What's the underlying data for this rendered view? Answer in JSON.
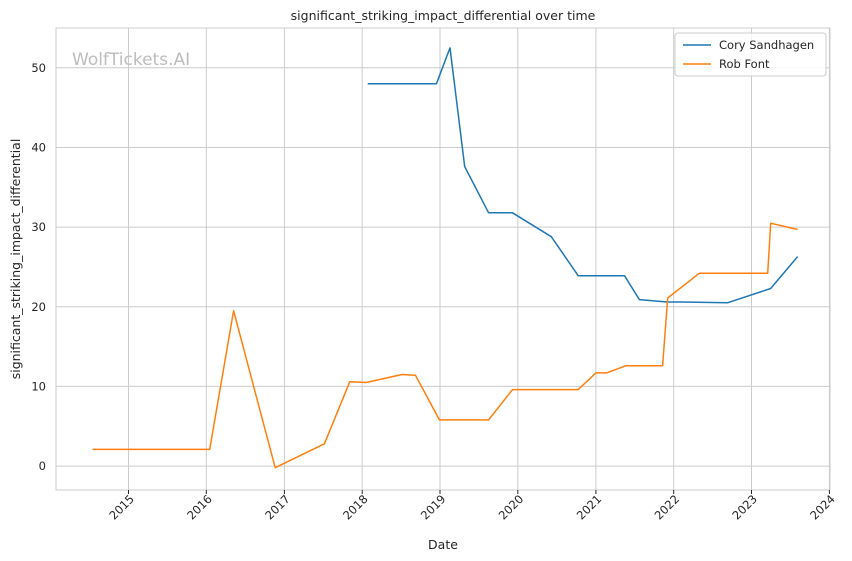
{
  "chart_data": {
    "type": "line",
    "title": "significant_striking_impact_differential over time",
    "xlabel": "Date",
    "ylabel": "significant_striking_impact_differential",
    "watermark": "WolfTickets.AI",
    "xlim": [
      "2014-01-26",
      "2024-01-04"
    ],
    "ylim": [
      -3,
      55
    ],
    "x_ticks": [
      "2015",
      "2016",
      "2017",
      "2018",
      "2019",
      "2020",
      "2021",
      "2022",
      "2023",
      "2024"
    ],
    "y_ticks": [
      0,
      10,
      20,
      30,
      40,
      50
    ],
    "grid": true,
    "legend_position": "top-right",
    "series": [
      {
        "name": "Cory Sandhagen",
        "color": "#1f77b4",
        "points": [
          {
            "x": "2018-01-27",
            "y": 48.0
          },
          {
            "x": "2018-12-15",
            "y": 48.0
          },
          {
            "x": "2019-02-17",
            "y": 52.5
          },
          {
            "x": "2019-04-27",
            "y": 37.6
          },
          {
            "x": "2019-08-17",
            "y": 31.8
          },
          {
            "x": "2019-12-07",
            "y": 31.8
          },
          {
            "x": "2020-06-06",
            "y": 28.8
          },
          {
            "x": "2020-10-10",
            "y": 23.9
          },
          {
            "x": "2021-02-06",
            "y": 23.9
          },
          {
            "x": "2021-05-15",
            "y": 23.9
          },
          {
            "x": "2021-07-24",
            "y": 20.9
          },
          {
            "x": "2021-12-01",
            "y": 20.6
          },
          {
            "x": "2022-02-08",
            "y": 20.6
          },
          {
            "x": "2022-09-10",
            "y": 20.5
          },
          {
            "x": "2023-04-01",
            "y": 22.3
          },
          {
            "x": "2023-08-05",
            "y": 26.3
          }
        ]
      },
      {
        "name": "Rob Font",
        "color": "#ff7f0e",
        "points": [
          {
            "x": "2014-07-16",
            "y": 2.1
          },
          {
            "x": "2016-01-17",
            "y": 2.1
          },
          {
            "x": "2016-05-08",
            "y": 19.5
          },
          {
            "x": "2016-11-19",
            "y": -0.2
          },
          {
            "x": "2017-07-08",
            "y": 2.8
          },
          {
            "x": "2017-11-04",
            "y": 10.6
          },
          {
            "x": "2018-01-20",
            "y": 10.5
          },
          {
            "x": "2018-07-07",
            "y": 11.5
          },
          {
            "x": "2018-09-08",
            "y": 11.4
          },
          {
            "x": "2018-12-29",
            "y": 5.8
          },
          {
            "x": "2019-08-17",
            "y": 5.8
          },
          {
            "x": "2019-12-07",
            "y": 9.6
          },
          {
            "x": "2020-10-10",
            "y": 9.6
          },
          {
            "x": "2021-01-01",
            "y": 11.7
          },
          {
            "x": "2021-02-20",
            "y": 11.7
          },
          {
            "x": "2021-05-22",
            "y": 12.6
          },
          {
            "x": "2021-11-10",
            "y": 12.6
          },
          {
            "x": "2021-12-04",
            "y": 21.1
          },
          {
            "x": "2022-05-01",
            "y": 24.2
          },
          {
            "x": "2023-03-18",
            "y": 24.2
          },
          {
            "x": "2023-04-01",
            "y": 30.5
          },
          {
            "x": "2023-08-05",
            "y": 29.7
          }
        ]
      }
    ]
  }
}
